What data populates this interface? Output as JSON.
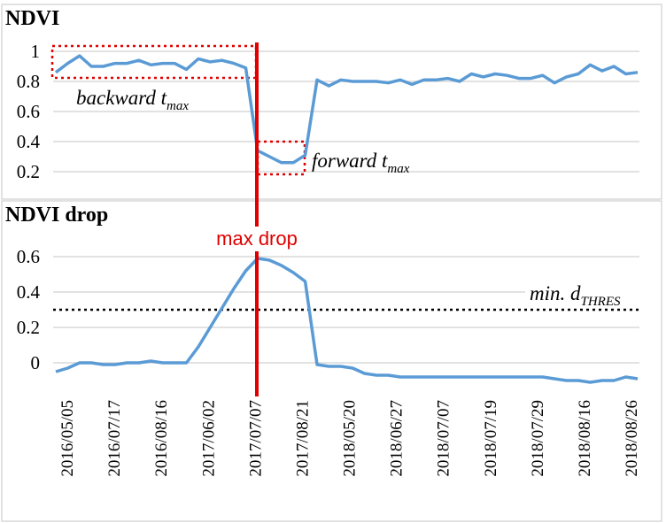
{
  "chart_data": [
    {
      "type": "line",
      "title": "NDVI",
      "ylim": [
        0.1,
        1.05
      ],
      "yticks": [
        "0.2",
        "0.4",
        "0.6",
        "0.8",
        "1"
      ],
      "series": [
        {
          "values": [
            0.86,
            0.92,
            0.97,
            0.9,
            0.9,
            0.92,
            0.92,
            0.94,
            0.91,
            0.92,
            0.92,
            0.88,
            0.95,
            0.93,
            0.94,
            0.92,
            0.89,
            0.34,
            0.3,
            0.26,
            0.26,
            0.31,
            0.81,
            0.77,
            0.81,
            0.8,
            0.8,
            0.8,
            0.79,
            0.81,
            0.78,
            0.81,
            0.81,
            0.82,
            0.8,
            0.85,
            0.83,
            0.85,
            0.84,
            0.82,
            0.82,
            0.84,
            0.79,
            0.83,
            0.85,
            0.91,
            0.87,
            0.9,
            0.85,
            0.86
          ]
        }
      ],
      "annotations": {
        "backward": {
          "label": "backward t",
          "sub": "max"
        },
        "forward": {
          "label": "forward t",
          "sub": "max"
        }
      }
    },
    {
      "type": "line",
      "title": "NDVI drop",
      "ylim": [
        -0.12,
        0.68
      ],
      "yticks": [
        "0",
        "0.2",
        "0.4",
        "0.6"
      ],
      "series": [
        {
          "values": [
            -0.05,
            -0.03,
            0.0,
            0.0,
            -0.01,
            -0.01,
            0.0,
            0.0,
            0.01,
            0.0,
            0.0,
            0.0,
            0.09,
            0.2,
            0.31,
            0.42,
            0.52,
            0.59,
            0.58,
            0.55,
            0.51,
            0.46,
            -0.01,
            -0.02,
            -0.02,
            -0.03,
            -0.06,
            -0.07,
            -0.07,
            -0.08,
            -0.08,
            -0.08,
            -0.08,
            -0.08,
            -0.08,
            -0.08,
            -0.08,
            -0.08,
            -0.08,
            -0.08,
            -0.08,
            -0.08,
            -0.09,
            -0.1,
            -0.1,
            -0.11,
            -0.1,
            -0.1,
            -0.08,
            -0.09
          ]
        }
      ],
      "threshold": {
        "value": 0.3,
        "label": "min. d",
        "sub": "THRES"
      },
      "max_drop_label": "max drop"
    }
  ],
  "x_tick_labels": [
    "2016/05/05",
    "2016/07/17",
    "2016/08/16",
    "2017/06/02",
    "2017/07/07",
    "2017/08/21",
    "2018/05/20",
    "2018/06/27",
    "2018/07/07",
    "2018/07/19",
    "2018/07/29",
    "2018/08/16",
    "2018/08/26"
  ],
  "max_drop_index": 17,
  "colors": {
    "series": "#5b9bd5",
    "marker": "#e00000",
    "threshold": "#000000",
    "grid": "#d9d9d9"
  }
}
